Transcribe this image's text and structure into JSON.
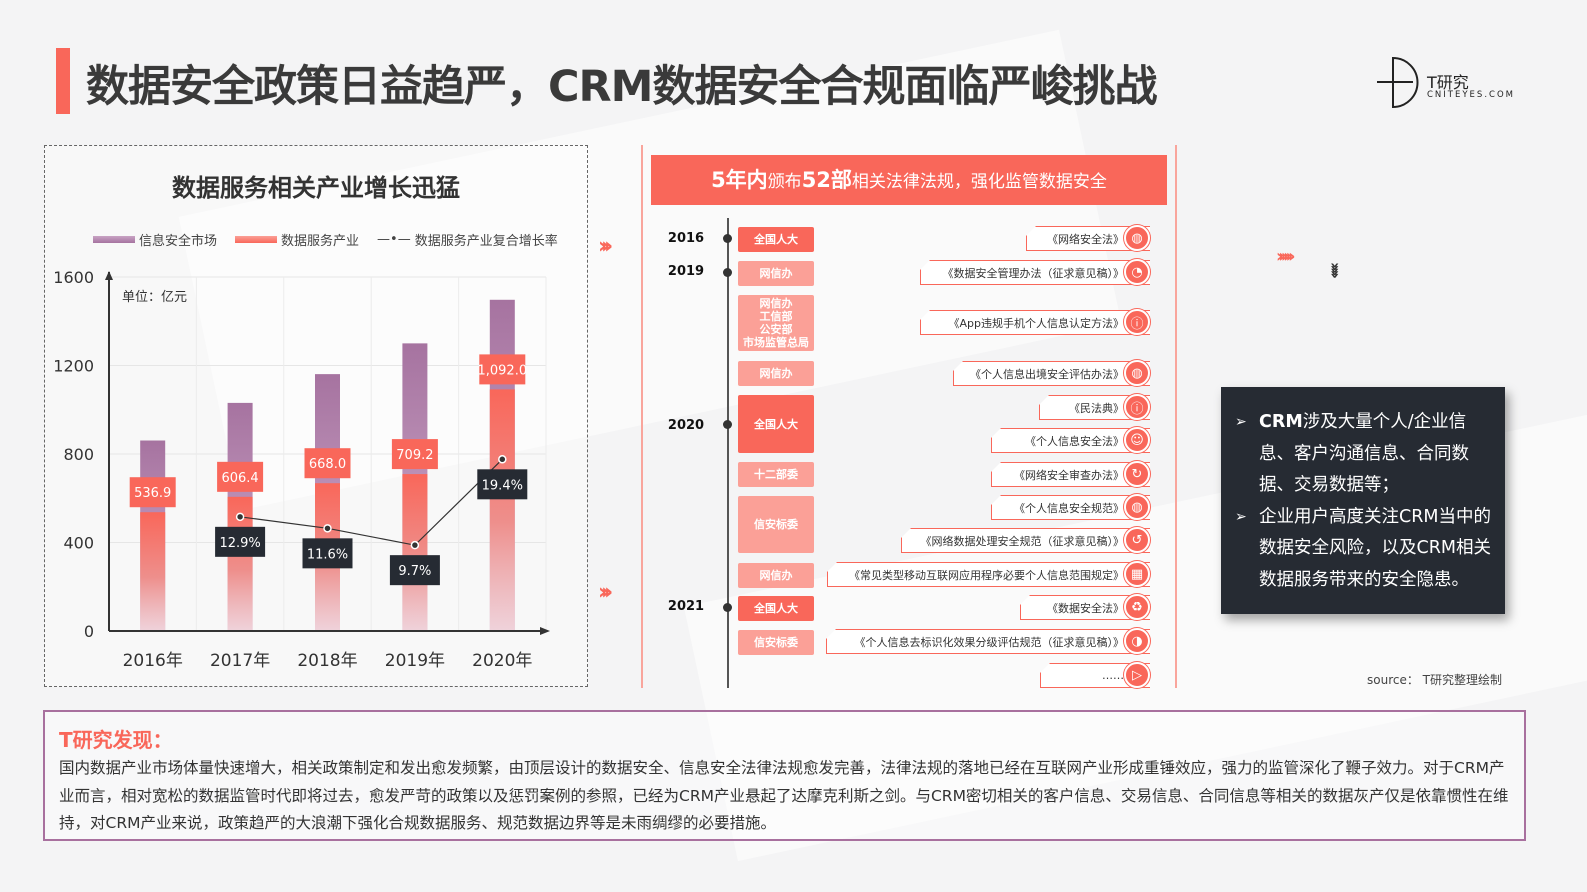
{
  "page": {
    "title": "数据安全政策日益趋严，CRM数据安全合规面临严峻挑战"
  },
  "logo": {
    "name": "T研究",
    "domain": "CNITEYES.COM"
  },
  "colors": {
    "accent": "#f9675a",
    "accent_light": "#fba097",
    "purple": "#a673a0",
    "dark": "#262b33"
  },
  "chart_data": {
    "type": "bar",
    "title": "数据服务相关产业增长迅猛",
    "unit_note": "单位：亿元",
    "categories": [
      "2016年",
      "2017年",
      "2018年",
      "2019年",
      "2020年"
    ],
    "ylim": [
      0,
      1600
    ],
    "yticks": [
      "0",
      "400",
      "800",
      "1200",
      "1600"
    ],
    "y2lim": [
      0,
      40
    ],
    "grid": true,
    "legend_position": "top",
    "series": [
      {
        "name": "信息安全市场",
        "type": "bar",
        "color": "#a673a0",
        "values": [
          861,
          1031,
          1161,
          1300,
          1497
        ]
      },
      {
        "name": "数据服务产业",
        "type": "bar",
        "color": "#f9675a",
        "values": [
          536.9,
          606.4,
          668.0,
          709.2,
          1092.0
        ],
        "labels": [
          "536.9",
          "606.4",
          "668.0",
          "709.2",
          "1,092.0"
        ]
      },
      {
        "name": "数据服务产业复合增长率",
        "type": "line",
        "axis": "secondary",
        "color": "#333333",
        "values": [
          null,
          12.9,
          11.6,
          9.7,
          19.4
        ],
        "labels": [
          "",
          "12.9%",
          "11.6%",
          "9.7%",
          "19.4%"
        ]
      }
    ]
  },
  "panel": {
    "head_pre": "5年内",
    "head_mid": "颁布",
    "head_num": "52部",
    "head_post": "相关法律法规，强化监管数据安全"
  },
  "timeline": {
    "years": [
      "2016",
      "2019",
      "2020",
      "2021"
    ],
    "orgs": [
      "全国人大",
      "网信办",
      "网信办\n工信部\n公安部\n市场监管总局",
      "网信办",
      "全国人大",
      "十二部委",
      "信安标委",
      "网信办",
      "全国人大",
      "信安标委"
    ],
    "laws": [
      "《网络安全法》",
      "《数据安全管理办法（征求意见稿）》",
      "《App违规手机个人信息认定方法》",
      "《个人信息出境安全评估办法》",
      "《民法典》",
      "《个人信息安全法》",
      "《网络安全审查办法》",
      "《个人信息安全规范》",
      "《网络数据处理安全规范（征求意见稿）》",
      "《常见类型移动互联网应用程序必要个人信息范围规定》",
      "《数据安全法》",
      "《个人信息去标识化效果分级评估规范（征求意见稿）》",
      "……"
    ]
  },
  "insight": {
    "points": [
      {
        "bold": "CRM",
        "text": "涉及大量个人/企业信息、客户沟通信息、合同数据、交易数据等；"
      },
      {
        "bold": "",
        "text": "企业用户高度关注CRM当中的数据安全风险，以及CRM相关数据服务带来的安全隐患。"
      }
    ]
  },
  "source": "source：  T研究整理绘制",
  "findings": {
    "title": "T研究发现：",
    "body": "国内数据产业市场体量快速增大，相关政策制定和发出愈发频繁，由顶层设计的数据安全、信息安全法律法规愈发完善，法律法规的落地已经在互联网产业形成重锤效应，强力的监管深化了鞭子效力。对于CRM产业而言，相对宽松的数据监管时代即将过去，愈发严苛的政策以及惩罚案例的参照，已经为CRM产业悬起了达摩克利斯之剑。与CRM密切相关的客户信息、交易信息、合同信息等相关的数据灰产仅是依靠惯性在维持，对CRM产业来说，政策趋严的大浪潮下强化合规数据服务、规范数据边界等是未雨绸缪的必要措施。"
  }
}
